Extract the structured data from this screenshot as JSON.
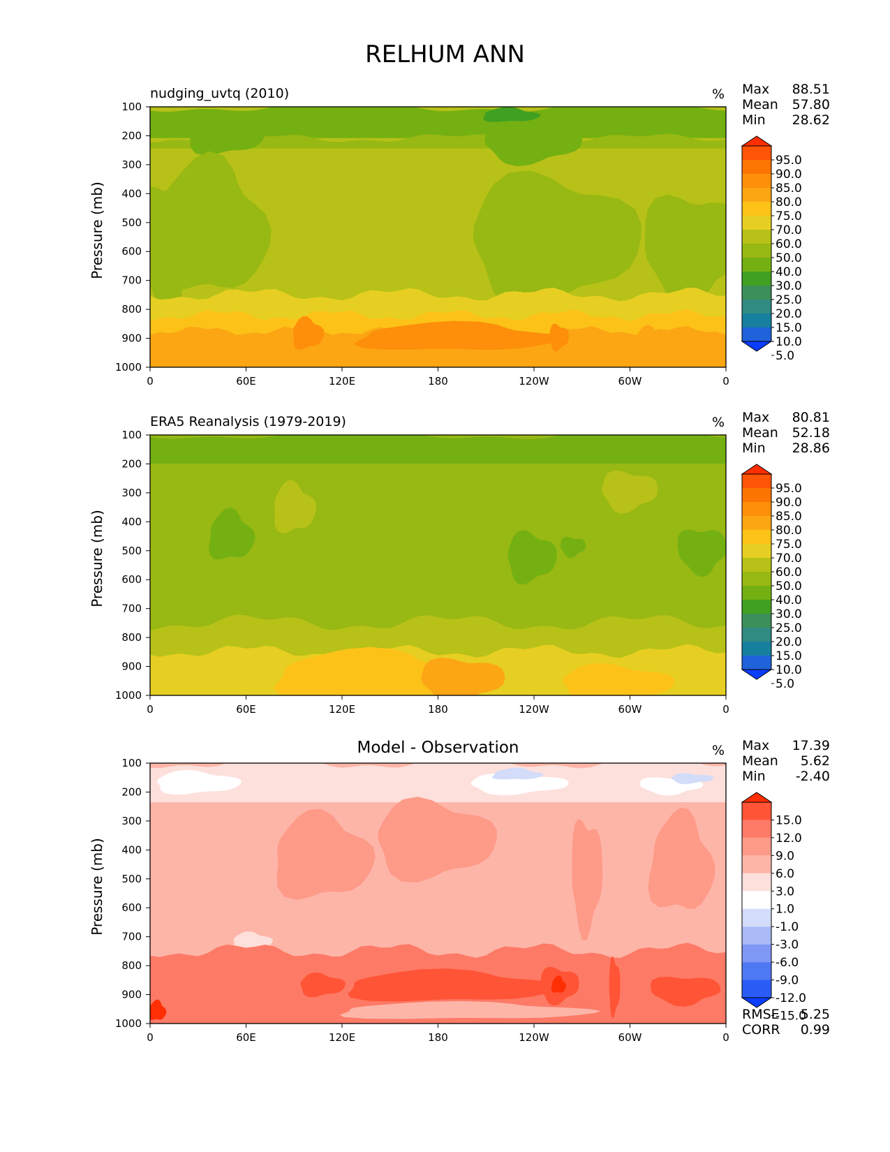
{
  "figure_title": "RELHUM ANN",
  "colors": {
    "abs": [
      "#0b3dff",
      "#1f62d9",
      "#177f9e",
      "#308b83",
      "#3d8f5a",
      "#3fa021",
      "#74b012",
      "#98b813",
      "#b7c118",
      "#e6cf22",
      "#fcc218",
      "#fca614",
      "#fd8f0a",
      "#fc7402",
      "#fd5406",
      "#ff2e03"
    ],
    "diff": [
      "#0b3dff",
      "#2a5cf5",
      "#4f78f4",
      "#7f97f5",
      "#a9baf6",
      "#d3dcf9",
      "#ffffff",
      "#fde0dc",
      "#fdb5a8",
      "#fe9a88",
      "#fd7a66",
      "#ff5436",
      "#ff2e03"
    ]
  },
  "panels": [
    {
      "title": "nudging_uvtq (2010)",
      "units": "%",
      "ylabel": "Pressure (mb)",
      "stats": [
        {
          "label": "Max",
          "value": "88.51"
        },
        {
          "label": "Mean",
          "value": "57.80"
        },
        {
          "label": "Min",
          "value": "28.62"
        }
      ],
      "colorbar_labels": [
        "95.0",
        "90.0",
        "85.0",
        "80.0",
        "75.0",
        "70.0",
        "60.0",
        "50.0",
        "40.0",
        "30.0",
        "25.0",
        "20.0",
        "15.0",
        "10.0",
        "5.0"
      ]
    },
    {
      "title": "ERA5 Reanalysis (1979-2019)",
      "units": "%",
      "ylabel": "Pressure (mb)",
      "stats": [
        {
          "label": "Max",
          "value": "80.81"
        },
        {
          "label": "Mean",
          "value": "52.18"
        },
        {
          "label": "Min",
          "value": "28.86"
        }
      ],
      "colorbar_labels": [
        "95.0",
        "90.0",
        "85.0",
        "80.0",
        "75.0",
        "70.0",
        "60.0",
        "50.0",
        "40.0",
        "30.0",
        "25.0",
        "20.0",
        "15.0",
        "10.0",
        "5.0"
      ]
    },
    {
      "title": "Model - Observation",
      "units": "%",
      "ylabel": "Pressure (mb)",
      "stats": [
        {
          "label": "Max",
          "value": "17.39"
        },
        {
          "label": "Mean",
          "value": "5.62"
        },
        {
          "label": "Min",
          "value": "-2.40"
        }
      ],
      "colorbar_labels": [
        "15.0",
        "12.0",
        "9.0",
        "6.0",
        "3.0",
        "1.0",
        "-1.0",
        "-3.0",
        "-6.0",
        "-9.0",
        "-12.0",
        "-15.0"
      ],
      "extra_stats": [
        {
          "label": "RMSE",
          "value": "5.25"
        },
        {
          "label": "CORR",
          "value": "0.99"
        }
      ]
    }
  ],
  "chart_data": [
    {
      "type": "heatmap",
      "title": "nudging_uvtq (2010)",
      "xlabel": "",
      "ylabel": "Pressure (mb)",
      "x_ticks": [
        "0",
        "60E",
        "120E",
        "180",
        "120W",
        "60W",
        "0"
      ],
      "x_tick_values": [
        0,
        60,
        120,
        180,
        240,
        300,
        360
      ],
      "xlim": [
        0,
        360
      ],
      "y_ticks": [
        "100",
        "200",
        "300",
        "400",
        "500",
        "600",
        "700",
        "800",
        "900",
        "1000"
      ],
      "y_tick_values": [
        100,
        200,
        300,
        400,
        500,
        600,
        700,
        800,
        900,
        1000
      ],
      "ylim": [
        1000,
        100
      ],
      "levels": [
        5,
        10,
        15,
        20,
        25,
        30,
        40,
        50,
        60,
        70,
        75,
        80,
        85,
        90,
        95
      ],
      "units": "%",
      "max": 88.51,
      "mean": 57.8,
      "min": 28.62
    },
    {
      "type": "heatmap",
      "title": "ERA5 Reanalysis (1979-2019)",
      "xlabel": "",
      "ylabel": "Pressure (mb)",
      "x_ticks": [
        "0",
        "60E",
        "120E",
        "180",
        "120W",
        "60W",
        "0"
      ],
      "x_tick_values": [
        0,
        60,
        120,
        180,
        240,
        300,
        360
      ],
      "xlim": [
        0,
        360
      ],
      "y_ticks": [
        "100",
        "200",
        "300",
        "400",
        "500",
        "600",
        "700",
        "800",
        "900",
        "1000"
      ],
      "y_tick_values": [
        100,
        200,
        300,
        400,
        500,
        600,
        700,
        800,
        900,
        1000
      ],
      "ylim": [
        1000,
        100
      ],
      "levels": [
        5,
        10,
        15,
        20,
        25,
        30,
        40,
        50,
        60,
        70,
        75,
        80,
        85,
        90,
        95
      ],
      "units": "%",
      "max": 80.81,
      "mean": 52.18,
      "min": 28.86
    },
    {
      "type": "heatmap",
      "title": "Model - Observation",
      "xlabel": "",
      "ylabel": "Pressure (mb)",
      "x_ticks": [
        "0",
        "60E",
        "120E",
        "180",
        "120W",
        "60W",
        "0"
      ],
      "x_tick_values": [
        0,
        60,
        120,
        180,
        240,
        300,
        360
      ],
      "xlim": [
        0,
        360
      ],
      "y_ticks": [
        "100",
        "200",
        "300",
        "400",
        "500",
        "600",
        "700",
        "800",
        "900",
        "1000"
      ],
      "y_tick_values": [
        100,
        200,
        300,
        400,
        500,
        600,
        700,
        800,
        900,
        1000
      ],
      "ylim": [
        1000,
        100
      ],
      "levels": [
        -15,
        -12,
        -9,
        -6,
        -3,
        -1,
        1,
        3,
        6,
        9,
        12,
        15
      ],
      "units": "%",
      "max": 17.39,
      "mean": 5.62,
      "min": -2.4,
      "rmse": 5.25,
      "corr": 0.99
    }
  ]
}
